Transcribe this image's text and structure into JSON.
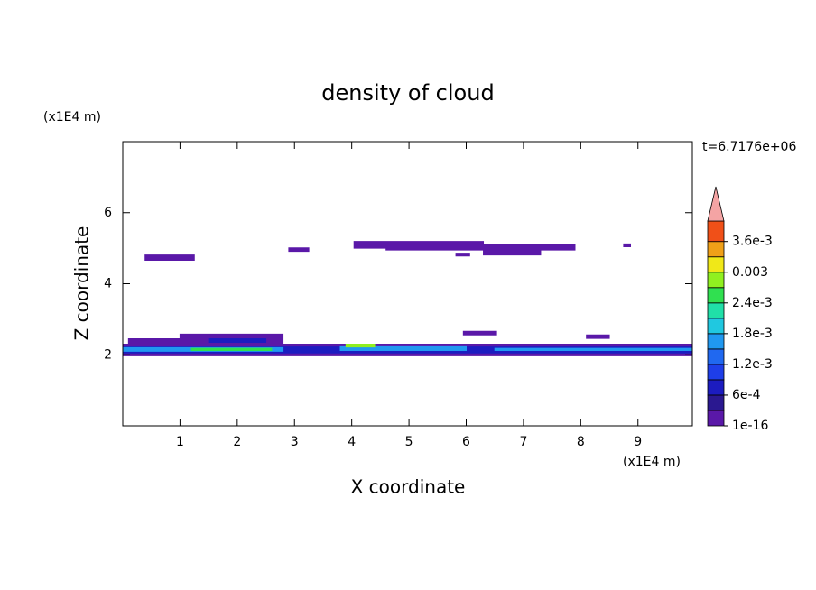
{
  "chart_data": {
    "type": "contour",
    "title": "density of cloud",
    "xlabel": "X coordinate",
    "ylabel": "Z coordinate",
    "x_unit": "(x1E4 m)",
    "y_unit": "(x1E4 m)",
    "annotation": "t=6.7176e+06",
    "xlim": [
      0,
      9.95
    ],
    "ylim": [
      0,
      8
    ],
    "xticks": [
      1,
      2,
      3,
      4,
      5,
      6,
      7,
      8,
      9
    ],
    "yticks": [
      2,
      4,
      6
    ],
    "colorbar": {
      "levels": [
        1e-16,
        0.0003,
        0.0006,
        0.0009,
        0.0012,
        0.0015,
        0.0018,
        0.0021,
        0.0024,
        0.0027,
        0.003,
        0.0033,
        0.0036,
        0.004
      ],
      "colors": [
        "#5a18a8",
        "#2a1890",
        "#1c1cc0",
        "#1e3ee8",
        "#2068f0",
        "#2098f0",
        "#20c8e0",
        "#20e0a8",
        "#30e050",
        "#90f020",
        "#f0e818",
        "#f0a018",
        "#f05018"
      ],
      "over_color": "#f4a4a4",
      "ticks": [
        1e-16,
        {
          "value": 0.0006,
          "label": "6e-4"
        },
        {
          "value": 0.0012,
          "label": "1.2e-3"
        },
        {
          "value": 0.0018,
          "label": "1.8e-3"
        },
        {
          "value": 0.0024,
          "label": "2.4e-3"
        },
        0.003,
        {
          "value": 0.0036,
          "label": "3.6e-3"
        }
      ]
    },
    "regions": [
      {
        "level": 1e-16,
        "x": [
          0.39,
          1.25,
          1.25,
          0.39
        ],
        "z": [
          4.81,
          4.81,
          4.66,
          4.66
        ]
      },
      {
        "level": 1e-16,
        "x": [
          2.9,
          3.25,
          3.25,
          2.9
        ],
        "z": [
          5.01,
          5.01,
          4.91,
          4.91
        ]
      },
      {
        "level": 1e-16,
        "x": [
          4.04,
          6.3,
          6.3,
          7.9,
          7.9,
          7.3,
          7.3,
          6.3,
          6.3,
          4.6,
          4.6,
          4.04
        ],
        "z": [
          5.19,
          5.19,
          5.1,
          5.1,
          4.95,
          4.95,
          4.81,
          4.81,
          4.95,
          4.95,
          5.0,
          5.0
        ]
      },
      {
        "level": 1e-16,
        "x": [
          5.82,
          6.06,
          6.06,
          5.82
        ],
        "z": [
          4.86,
          4.86,
          4.78,
          4.78
        ]
      },
      {
        "level": 1e-16,
        "x": [
          8.75,
          8.87,
          8.87,
          8.75
        ],
        "z": [
          5.12,
          5.12,
          5.04,
          5.04
        ]
      },
      {
        "level": 1e-16,
        "x": [
          5.95,
          6.53,
          6.53,
          5.95
        ],
        "z": [
          2.66,
          2.66,
          2.56,
          2.56
        ]
      },
      {
        "level": 1e-16,
        "x": [
          8.1,
          8.5,
          8.5,
          8.1
        ],
        "z": [
          2.56,
          2.56,
          2.46,
          2.46
        ]
      },
      {
        "level": 1e-16,
        "x": [
          0,
          0.1,
          0.1,
          1.0,
          1.0,
          2.8,
          2.8,
          9.95,
          9.95,
          0
        ],
        "z": [
          2.3,
          2.3,
          2.45,
          2.45,
          2.58,
          2.58,
          2.3,
          2.3,
          1.97,
          1.97
        ]
      },
      {
        "level": 0.0006,
        "x": [
          1.5,
          2.5,
          2.5,
          1.5
        ],
        "z": [
          2.45,
          2.45,
          2.35,
          2.35
        ]
      },
      {
        "level": 0.0006,
        "x": [
          0,
          9.95,
          9.95,
          0
        ],
        "z": [
          2.22,
          2.22,
          2.05,
          2.05
        ]
      },
      {
        "level": 0.0015,
        "x": [
          0,
          2.8,
          2.8,
          0
        ],
        "z": [
          2.2,
          2.2,
          2.1,
          2.1
        ]
      },
      {
        "level": 0.0015,
        "x": [
          3.8,
          6.0,
          6.0,
          3.8
        ],
        "z": [
          2.25,
          2.25,
          2.12,
          2.12
        ]
      },
      {
        "level": 0.0015,
        "x": [
          6.5,
          9.95,
          9.95,
          6.5
        ],
        "z": [
          2.18,
          2.18,
          2.12,
          2.12
        ]
      },
      {
        "level": 0.0024,
        "x": [
          1.2,
          2.6,
          2.6,
          1.2
        ],
        "z": [
          2.18,
          2.18,
          2.12,
          2.12
        ]
      },
      {
        "level": 0.0027,
        "x": [
          3.9,
          4.4,
          4.4,
          3.9
        ],
        "z": [
          2.3,
          2.3,
          2.22,
          2.22
        ]
      }
    ]
  }
}
